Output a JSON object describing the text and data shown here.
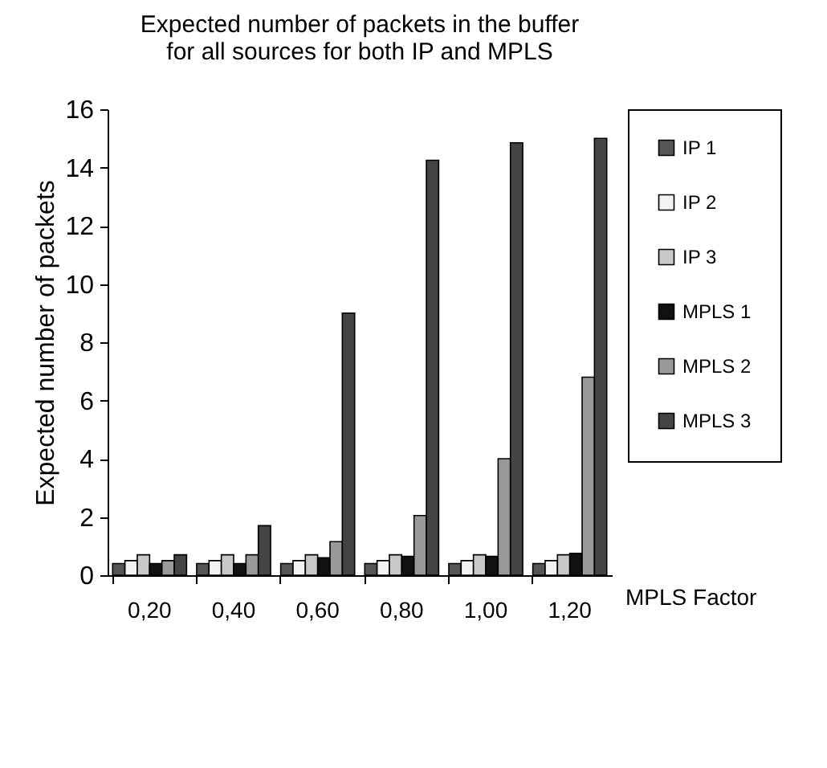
{
  "chart_data": {
    "type": "bar",
    "title": [
      "Expected number of packets in the buffer",
      "for all sources for both IP and MPLS"
    ],
    "xlabel": "MPLS Factor",
    "ylabel": "Expected number of packets",
    "categories": [
      "0,20",
      "0,40",
      "0,60",
      "0,80",
      "1,00",
      "1,20"
    ],
    "series": [
      {
        "name": "IP 1",
        "color": "#555555",
        "values": [
          0.4,
          0.4,
          0.4,
          0.4,
          0.4,
          0.4
        ]
      },
      {
        "name": "IP 2",
        "color": "#f2f2f2",
        "values": [
          0.5,
          0.5,
          0.5,
          0.5,
          0.5,
          0.5
        ]
      },
      {
        "name": "IP 3",
        "color": "#c8c8c8",
        "values": [
          0.7,
          0.7,
          0.7,
          0.7,
          0.7,
          0.7
        ]
      },
      {
        "name": "MPLS 1",
        "color": "#111111",
        "values": [
          0.4,
          0.4,
          0.6,
          0.65,
          0.65,
          0.75
        ]
      },
      {
        "name": "MPLS 2",
        "color": "#999999",
        "values": [
          0.5,
          0.7,
          1.15,
          2.05,
          4.0,
          6.8
        ]
      },
      {
        "name": "MPLS 3",
        "color": "#444444",
        "values": [
          0.7,
          1.7,
          9.0,
          14.25,
          14.85,
          15.0
        ]
      }
    ],
    "ylim": [
      0,
      16
    ],
    "yticks": [
      0,
      2,
      4,
      6,
      8,
      10,
      12,
      14,
      16
    ],
    "grid": false,
    "legend": "right"
  }
}
